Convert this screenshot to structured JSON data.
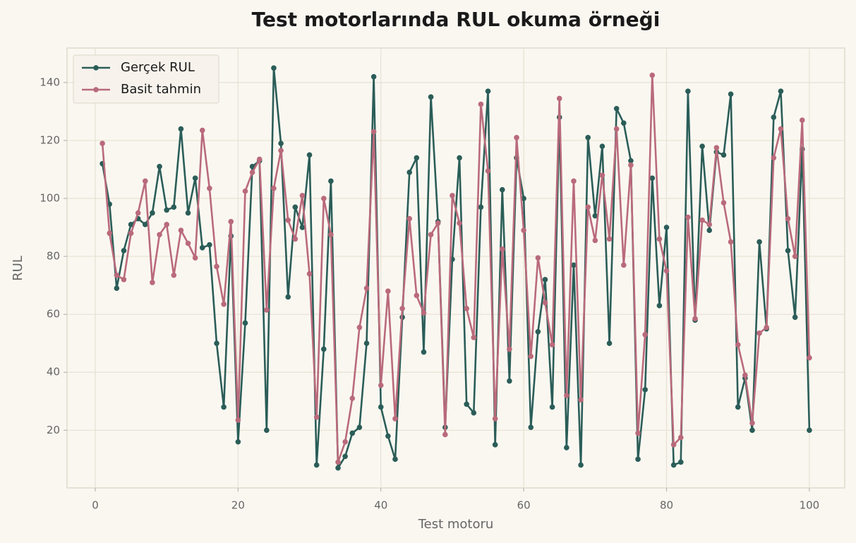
{
  "chart_data": {
    "type": "line",
    "title": "Test motorlarında RUL okuma örneği",
    "xlabel": "Test motoru",
    "ylabel": "RUL",
    "x": [
      1,
      2,
      3,
      4,
      5,
      6,
      7,
      8,
      9,
      10,
      11,
      12,
      13,
      14,
      15,
      16,
      17,
      18,
      19,
      20,
      21,
      22,
      23,
      24,
      25,
      26,
      27,
      28,
      29,
      30,
      31,
      32,
      33,
      34,
      35,
      36,
      37,
      38,
      39,
      40,
      41,
      42,
      43,
      44,
      45,
      46,
      47,
      48,
      49,
      50,
      51,
      52,
      53,
      54,
      55,
      56,
      57,
      58,
      59,
      60,
      61,
      62,
      63,
      64,
      65,
      66,
      67,
      68,
      69,
      70,
      71,
      72,
      73,
      74,
      75,
      76,
      77,
      78,
      79,
      80,
      81,
      82,
      83,
      84,
      85,
      86,
      87,
      88,
      89,
      90,
      91,
      92,
      93,
      94,
      95,
      96,
      97,
      98,
      99,
      100
    ],
    "series": [
      {
        "name": "Gerçek RUL",
        "color": "#2b5d58",
        "values": [
          112,
          98,
          69,
          82,
          91,
          93,
          91,
          95,
          111,
          96,
          97,
          124,
          95,
          107,
          83,
          84,
          50,
          28,
          87,
          16,
          57,
          111,
          113,
          20,
          145,
          119,
          66,
          97,
          90,
          115,
          8,
          48,
          106,
          7,
          11,
          19,
          21,
          50,
          142,
          28,
          18,
          10,
          59,
          109,
          114,
          47,
          135,
          92,
          21,
          79,
          114,
          29,
          26,
          97,
          137,
          15,
          103,
          37,
          114,
          100,
          21,
          54,
          72,
          28,
          128,
          14,
          77,
          8,
          121,
          94,
          118,
          50,
          131,
          126,
          113,
          10,
          34,
          107,
          63,
          90,
          8,
          9,
          137,
          58,
          118,
          89,
          116,
          115,
          136,
          28,
          38,
          20,
          85,
          55,
          128,
          137,
          82,
          59,
          117,
          20
        ]
      },
      {
        "name": "Basit tahmin",
        "color": "#b96a7b",
        "values": [
          119,
          88,
          73.5,
          72,
          88,
          95,
          106,
          71,
          87.5,
          91,
          73.5,
          89,
          84.5,
          79.5,
          123.5,
          103.5,
          76.5,
          63.5,
          92,
          23.5,
          102.5,
          109,
          113.5,
          61.5,
          103.5,
          116.5,
          92.5,
          86,
          101,
          74,
          24.5,
          100,
          87.5,
          9,
          16,
          31,
          55.5,
          69,
          123,
          35.5,
          68,
          24,
          62,
          93,
          66.5,
          60.5,
          87.5,
          91.5,
          18.5,
          101,
          91.5,
          62,
          52,
          132.5,
          109.5,
          24,
          82.5,
          48,
          121,
          89,
          45.5,
          79.5,
          64,
          49.5,
          134.5,
          32,
          106,
          30.5,
          97,
          85.5,
          108,
          86,
          124,
          77,
          111.5,
          19,
          53,
          142.5,
          86,
          75,
          15,
          17.5,
          93.5,
          58.5,
          92.5,
          91,
          117.5,
          98.5,
          85,
          49.5,
          39,
          22.5,
          53.5,
          55.5,
          114,
          124,
          93,
          80,
          127,
          45
        ]
      }
    ],
    "xlim": [
      -3.95,
      104.95
    ],
    "ylim": [
      0.1,
      151.9
    ],
    "xticks": [
      0,
      20,
      40,
      60,
      80,
      100
    ],
    "yticks": [
      20,
      40,
      60,
      80,
      100,
      120,
      140
    ],
    "grid": true,
    "legend": "upper left"
  }
}
